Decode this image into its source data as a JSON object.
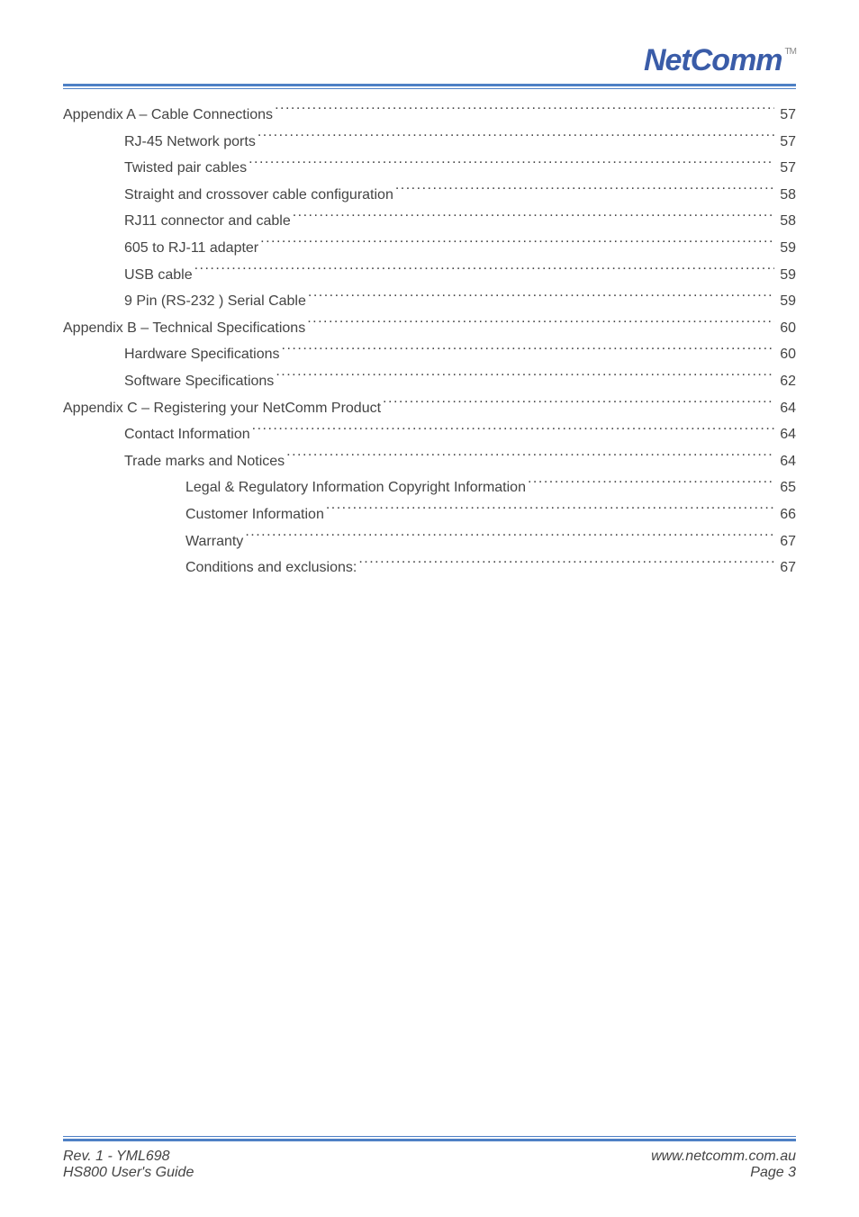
{
  "brand": {
    "name": "NetComm",
    "tm": "TM"
  },
  "colors": {
    "rule": "#4e80c5",
    "text": "#444444",
    "bg": "#ffffff"
  },
  "typography": {
    "body_pt": 12,
    "logo_pt": 26,
    "family": "Arial"
  },
  "toc": {
    "leader_char": ".",
    "items": [
      {
        "level": 0,
        "label": "Appendix A – Cable Connections",
        "page": "57"
      },
      {
        "level": 1,
        "label": "RJ-45 Network ports",
        "page": "57"
      },
      {
        "level": 1,
        "label": "Twisted pair cables",
        "page": "57"
      },
      {
        "level": 1,
        "label": "Straight and crossover cable configuration",
        "page": "58"
      },
      {
        "level": 1,
        "label": "RJ11 connector and cable",
        "page": "58"
      },
      {
        "level": 1,
        "label": "605 to RJ-11 adapter",
        "page": "59"
      },
      {
        "level": 1,
        "label": "USB cable",
        "page": "59"
      },
      {
        "level": 1,
        "label": "9 Pin (RS-232 ) Serial Cable",
        "page": "59"
      },
      {
        "level": 0,
        "label": "Appendix B – Technical Specifications",
        "page": "60"
      },
      {
        "level": 1,
        "label": "Hardware Specifications",
        "page": "60"
      },
      {
        "level": 1,
        "label": "Software Specifications",
        "page": "62"
      },
      {
        "level": 0,
        "label": "Appendix C – Registering your NetComm Product",
        "page": "64"
      },
      {
        "level": 1,
        "label": "Contact Information",
        "page": "64"
      },
      {
        "level": 1,
        "label": "Trade marks and Notices",
        "page": "64"
      },
      {
        "level": 2,
        "label": "Legal & Regulatory Information Copyright Information",
        "page": "65"
      },
      {
        "level": 2,
        "label": "Customer Information",
        "page": "66"
      },
      {
        "level": 2,
        "label": "Warranty",
        "page": "67"
      },
      {
        "level": 2,
        "label": "Conditions and exclusions:",
        "page": "67"
      }
    ]
  },
  "footer": {
    "left_line1": "Rev. 1 - YML698",
    "left_line2": "HS800 User's Guide",
    "right_line1": "www.netcomm.com.au",
    "right_line2": "Page 3"
  }
}
